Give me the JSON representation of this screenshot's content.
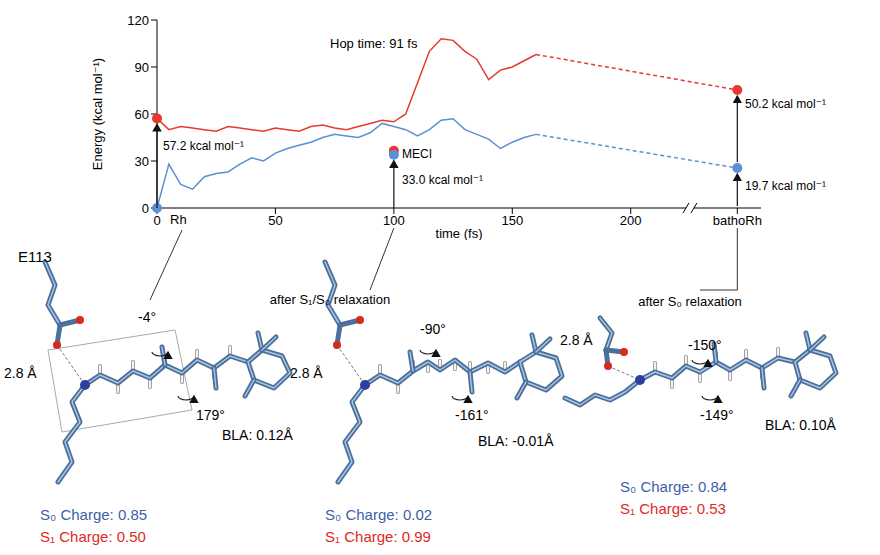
{
  "chart_data": {
    "type": "line",
    "xlabel": "time (fs)",
    "ylabel": "Energy (kcal mol⁻¹)",
    "xlim": [
      0,
      255
    ],
    "xticks": [
      0,
      50,
      100,
      150,
      200,
      {
        "value": 245,
        "label": "bathoRh"
      }
    ],
    "ylim": [
      0,
      120
    ],
    "yticks": [
      0,
      30,
      60,
      90,
      120
    ],
    "grid": false,
    "x": [
      0,
      5,
      10,
      15,
      20,
      25,
      30,
      35,
      40,
      45,
      50,
      55,
      60,
      65,
      70,
      75,
      80,
      85,
      90,
      95,
      100,
      105,
      110,
      115,
      120,
      125,
      130,
      135,
      140,
      145,
      150,
      155,
      160
    ],
    "series": [
      {
        "color": "#e8392f",
        "values": [
          57.2,
          50,
          52,
          51,
          50,
          49,
          52,
          51,
          50,
          49,
          51,
          50,
          49,
          52,
          53,
          51,
          50,
          52,
          54,
          56,
          55,
          60,
          80,
          100,
          108,
          107,
          100,
          95,
          82,
          88,
          90,
          94,
          98
        ]
      },
      {
        "color": "#5b8fd6",
        "values": [
          0,
          28,
          15,
          12,
          20,
          22,
          23,
          28,
          32,
          30,
          35,
          38,
          40,
          42,
          45,
          47,
          46,
          45,
          48,
          54,
          52,
          50,
          46,
          50,
          56,
          57,
          50,
          47,
          44,
          38,
          42,
          45,
          47
        ]
      },
      {
        "color": "#e8392f",
        "line_style": "dashed",
        "x": [
          160,
          245
        ],
        "values": [
          98,
          75.3
        ]
      },
      {
        "color": "#5b8fd6",
        "line_style": "dashed",
        "x": [
          160,
          245
        ],
        "values": [
          47,
          25.5
        ]
      }
    ],
    "points": [
      {
        "x": 0,
        "y": 57.2,
        "color": "#e8392f"
      },
      {
        "x": 0,
        "y": 0,
        "color": "#5b8fd6"
      },
      {
        "x": 100,
        "y": 36.5,
        "color": "#e8392f"
      },
      {
        "x": 100,
        "y": 34,
        "color": "#5b8fd6"
      },
      {
        "x": 245,
        "y": 75.3,
        "color": "#e8392f"
      },
      {
        "x": 245,
        "y": 25.5,
        "color": "#5b8fd6"
      }
    ],
    "annotations": [
      "Hop time: 91 fs",
      "57.2 kcal mol⁻¹",
      "MECI",
      "33.0 kcal mol⁻¹",
      "50.2 kcal mol⁻¹",
      "19.7 kcal mol⁻¹",
      "Rh"
    ]
  },
  "structures": [
    {
      "residue": "E113",
      "distance": "2.8 Å",
      "dihedrals": [
        "-4°",
        "179°"
      ],
      "bla": "BLA: 0.12Å",
      "s0_charge": "S₀ Charge: 0.85",
      "s1_charge": "S₁ Charge: 0.50"
    },
    {
      "caption": "after S₁/S₀ relaxation",
      "distance": "2.8 Å",
      "dihedrals": [
        "-90°",
        "-161°"
      ],
      "bla": "BLA: -0.01Å",
      "s0_charge": "S₀ Charge: 0.02",
      "s1_charge": "S₁ Charge: 0.99"
    },
    {
      "caption": "after S₀ relaxation",
      "distance": "2.8 Å",
      "dihedrals": [
        "-150°",
        "-149°"
      ],
      "bla": "BLA: 0.10Å",
      "s0_charge": "S₀ Charge: 0.84",
      "s1_charge": "S₁ Charge: 0.53"
    }
  ],
  "charge_colors": {
    "s0": "#3d5fa8",
    "s1": "#e02a1f"
  }
}
